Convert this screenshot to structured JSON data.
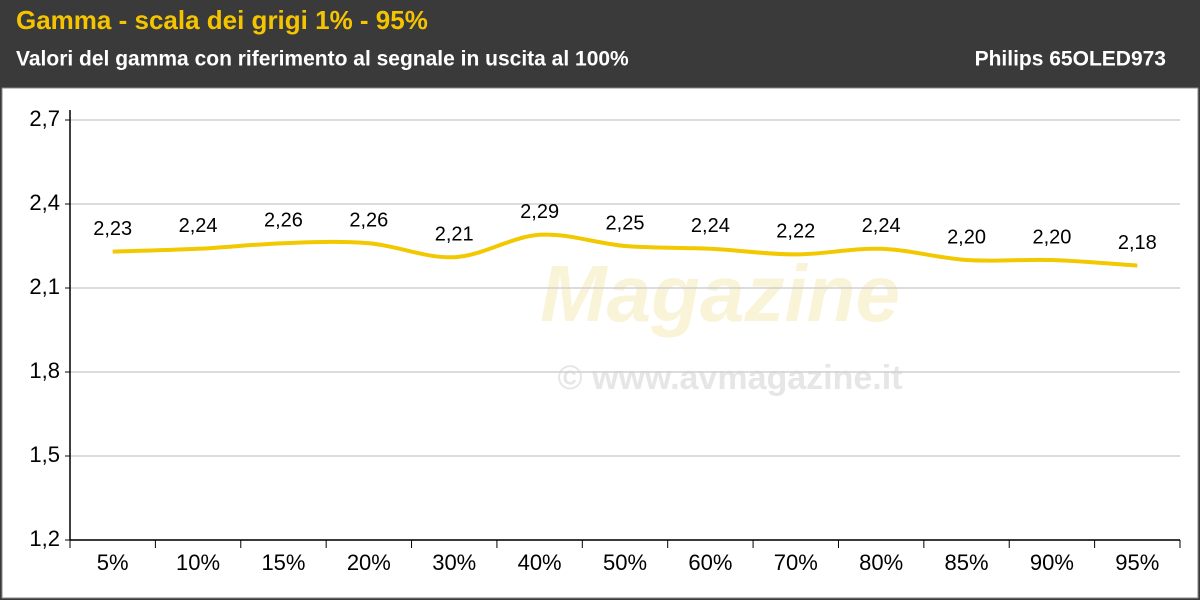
{
  "chart_data": {
    "type": "line",
    "title": "Gamma - scala dei grigi 1% - 95%",
    "subtitle": "Valori del gamma con riferimento al segnale in uscita al 100%",
    "model": "Philips 65OLED973",
    "watermark": "© www.avmagazine.it",
    "logo": "Magazine",
    "categories": [
      "5%",
      "10%",
      "15%",
      "20%",
      "30%",
      "40%",
      "50%",
      "60%",
      "70%",
      "80%",
      "85%",
      "90%",
      "95%"
    ],
    "values": [
      2.23,
      2.24,
      2.26,
      2.26,
      2.21,
      2.29,
      2.25,
      2.24,
      2.22,
      2.24,
      2.2,
      2.2,
      2.18
    ],
    "value_labels": [
      "2,23",
      "2,24",
      "2,26",
      "2,26",
      "2,21",
      "2,29",
      "2,25",
      "2,24",
      "2,22",
      "2,24",
      "2,20",
      "2,20",
      "2,18"
    ],
    "color": "#f2c800",
    "ylim": [
      1.2,
      2.7
    ],
    "yticks": [
      {
        "value": 1.2,
        "label": "1,2"
      },
      {
        "value": 1.5,
        "label": "1,5"
      },
      {
        "value": 1.8,
        "label": "1,8"
      },
      {
        "value": 2.1,
        "label": "2,1"
      },
      {
        "value": 2.4,
        "label": "2,4"
      },
      {
        "value": 2.7,
        "label": "2,7"
      }
    ],
    "grid": true
  }
}
